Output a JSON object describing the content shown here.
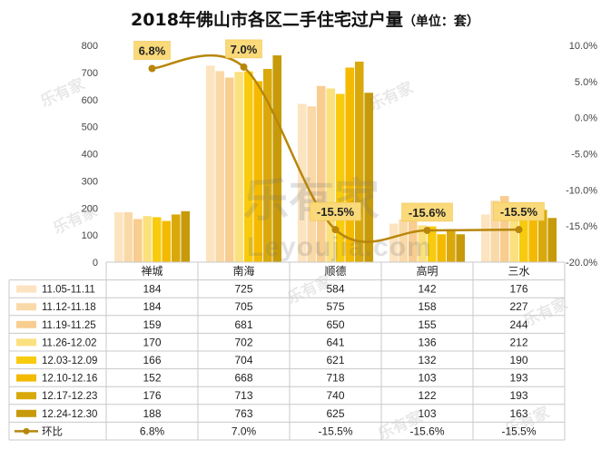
{
  "chart_data": {
    "type": "bar",
    "title": "2018年佛山市各区二手住宅过户量",
    "subtitle": "（单位：套）",
    "categories": [
      "禅城",
      "南海",
      "顺德",
      "高明",
      "三水"
    ],
    "series": [
      {
        "name": "11.05-11.11",
        "color": "#FCE4C0",
        "values": [
          184,
          725,
          584,
          142,
          176
        ]
      },
      {
        "name": "11.12-11.18",
        "color": "#FAD9A8",
        "values": [
          184,
          705,
          575,
          158,
          227
        ]
      },
      {
        "name": "11.19-11.25",
        "color": "#F8CD8F",
        "values": [
          159,
          681,
          650,
          155,
          244
        ]
      },
      {
        "name": "11.26-12.02",
        "color": "#FBE07E",
        "values": [
          170,
          702,
          641,
          136,
          212
        ]
      },
      {
        "name": "12.03-12.09",
        "color": "#F8CB0E",
        "values": [
          166,
          704,
          621,
          132,
          190
        ]
      },
      {
        "name": "12.10-12.16",
        "color": "#F4BA00",
        "values": [
          152,
          668,
          718,
          103,
          193
        ]
      },
      {
        "name": "12.17-12.23",
        "color": "#D9A90C",
        "values": [
          176,
          713,
          740,
          122,
          193
        ]
      },
      {
        "name": "12.24-12.30",
        "color": "#C79A0A",
        "values": [
          188,
          763,
          625,
          103,
          163
        ]
      }
    ],
    "line": {
      "name": "环比",
      "color": "#B8860B",
      "values": [
        6.8,
        7.0,
        -15.5,
        -15.6,
        -15.5
      ],
      "labels": [
        "6.8%",
        "7.0%",
        "-15.5%",
        "-15.6%",
        "-15.5%"
      ]
    },
    "y_left": {
      "min": 0,
      "max": 800,
      "ticks": [
        "0",
        "100",
        "200",
        "300",
        "400",
        "500",
        "600",
        "700",
        "800"
      ]
    },
    "y_right": {
      "min": -20,
      "max": 10,
      "ticks": [
        "10.0%",
        "5.0%",
        "0.0%",
        "-5.0%",
        "-10.0%",
        "-15.0%",
        "-20.0%"
      ]
    },
    "watermark": "乐有家",
    "watermark_url": "Leyoujia.com"
  }
}
